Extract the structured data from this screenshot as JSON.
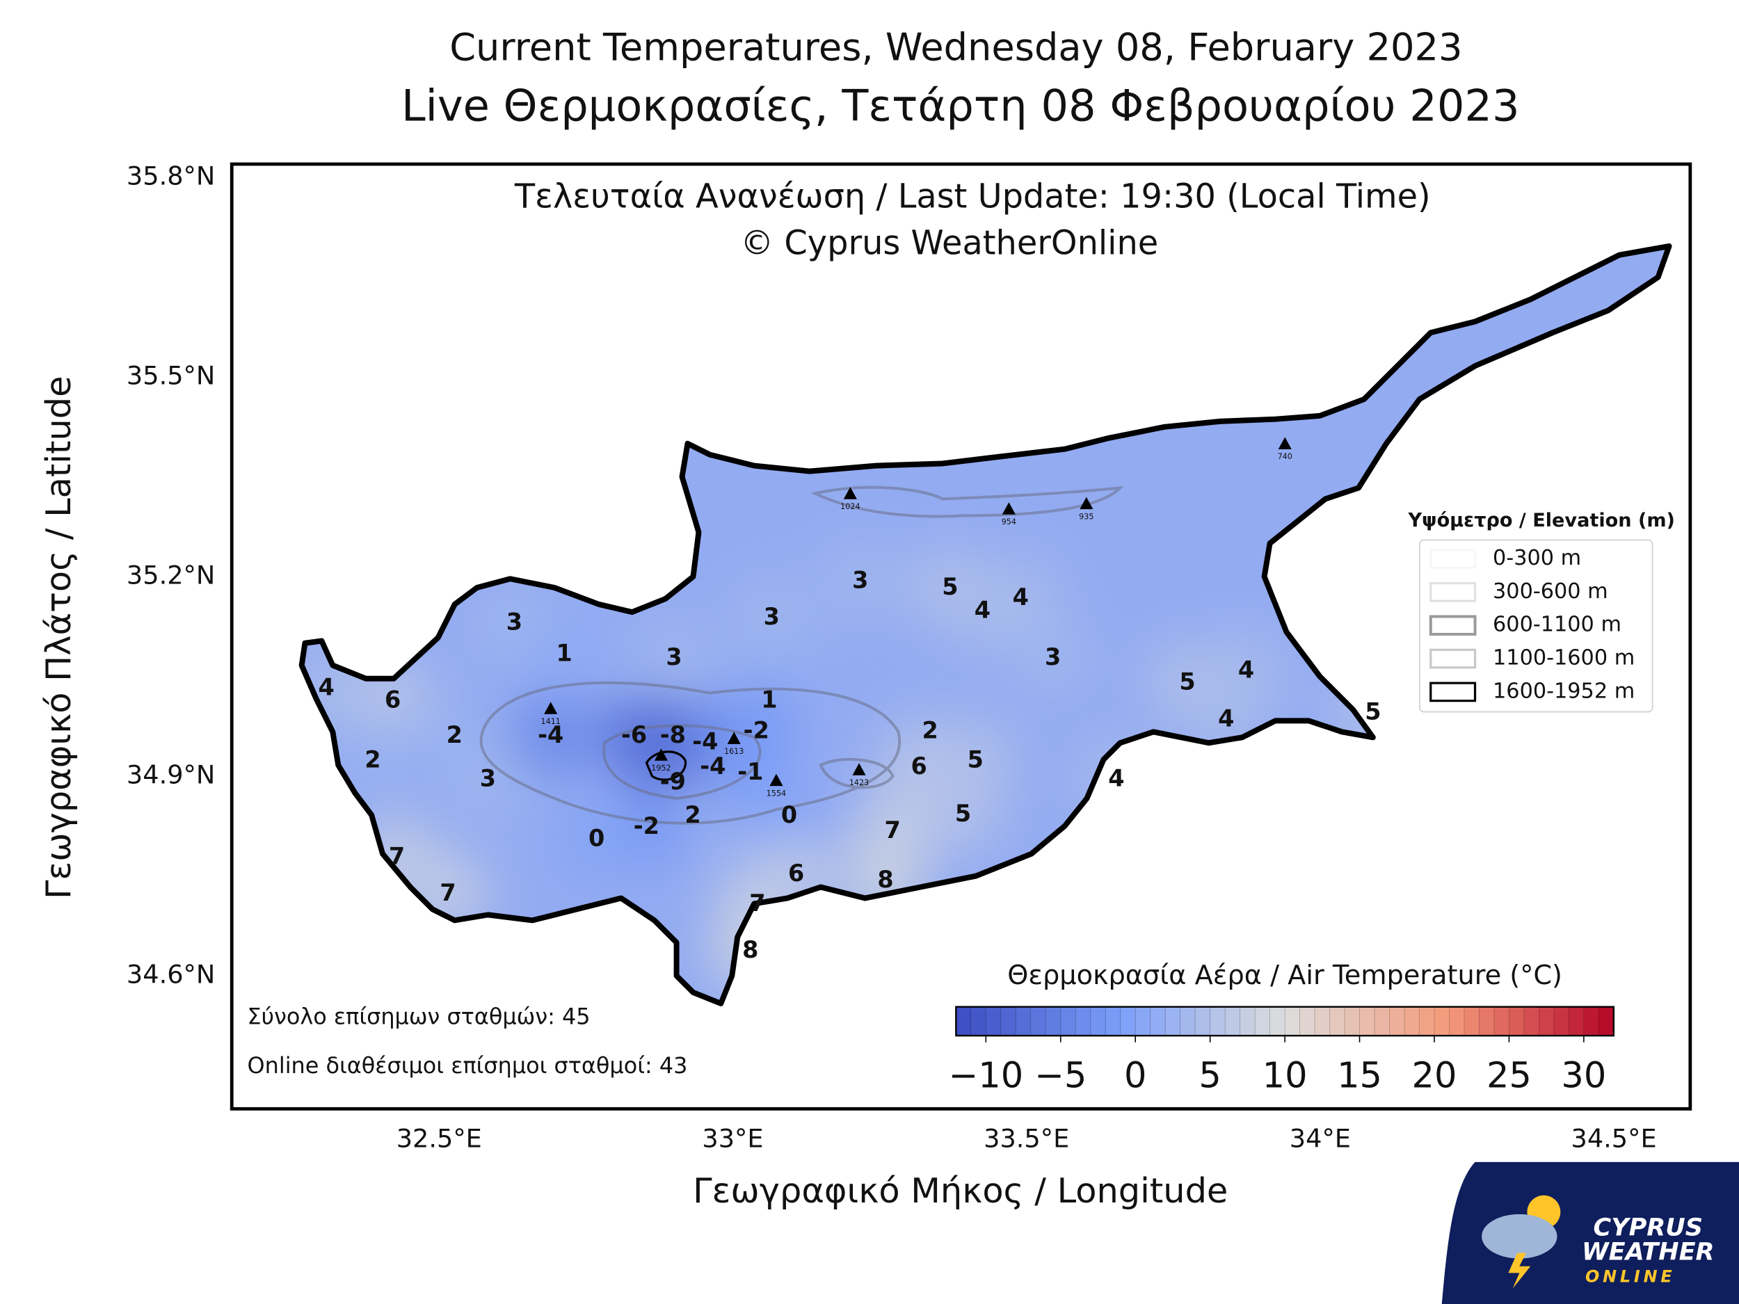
{
  "title": "Current Temperatures, Wednesday 08, February 2023",
  "subtitle": "Live Θερμοκρασίες, Τετάρτη 08 Φεβρουαρίου 2023",
  "map": {
    "type": "map",
    "annotation": [
      "Τελευταία Ανανέωση / Last Update: 19:30 (Local Time)",
      "© Cyprus WeatherOnline"
    ],
    "xlabel": "Γεωγραφικό Μήκος / Longitude",
    "ylabel": "Γεωγραφικό Πλάτος / Latitude",
    "xlim": [
      32.147,
      34.63
    ],
    "ylim": [
      34.4,
      35.82
    ],
    "xticks": [
      {
        "value": 32.5,
        "label": "32.5°E"
      },
      {
        "value": 33,
        "label": "33°E"
      },
      {
        "value": 33.5,
        "label": "33.5°E"
      },
      {
        "value": 34,
        "label": "34°E"
      },
      {
        "value": 34.5,
        "label": "34.5°E"
      }
    ],
    "yticks": [
      {
        "value": 34.6,
        "label": "34.6°N"
      },
      {
        "value": 34.9,
        "label": "34.9°N"
      },
      {
        "value": 35.2,
        "label": "35.2°N"
      },
      {
        "value": 35.5,
        "label": "35.5°N"
      },
      {
        "value": 35.8,
        "label": "35.8°N"
      }
    ],
    "grid": true,
    "stations": [
      {
        "lon": 32.628,
        "lat": 35.13,
        "value": 3
      },
      {
        "lon": 32.713,
        "lat": 35.083,
        "value": 1
      },
      {
        "lon": 32.9,
        "lat": 35.077,
        "value": 3
      },
      {
        "lon": 33.066,
        "lat": 35.138,
        "value": 3
      },
      {
        "lon": 33.217,
        "lat": 35.193,
        "value": 3
      },
      {
        "lon": 33.37,
        "lat": 35.183,
        "value": 5
      },
      {
        "lon": 33.425,
        "lat": 35.148,
        "value": 4
      },
      {
        "lon": 33.49,
        "lat": 35.167,
        "value": 4
      },
      {
        "lon": 33.545,
        "lat": 35.077,
        "value": 3
      },
      {
        "lon": 33.774,
        "lat": 35.04,
        "value": 5
      },
      {
        "lon": 33.874,
        "lat": 35.058,
        "value": 4
      },
      {
        "lon": 33.84,
        "lat": 34.985,
        "value": 4
      },
      {
        "lon": 34.09,
        "lat": 34.995,
        "value": 5
      },
      {
        "lon": 32.308,
        "lat": 35.032,
        "value": 4
      },
      {
        "lon": 32.421,
        "lat": 35.013,
        "value": 6
      },
      {
        "lon": 32.526,
        "lat": 34.96,
        "value": 2
      },
      {
        "lon": 32.387,
        "lat": 34.923,
        "value": 2
      },
      {
        "lon": 32.583,
        "lat": 34.895,
        "value": 3
      },
      {
        "lon": 32.69,
        "lat": 34.96,
        "value": -4
      },
      {
        "lon": 33.062,
        "lat": 35.013,
        "value": 1
      },
      {
        "lon": 32.832,
        "lat": 34.96,
        "value": -6
      },
      {
        "lon": 32.898,
        "lat": 34.96,
        "value": -8
      },
      {
        "lon": 32.953,
        "lat": 34.95,
        "value": -4
      },
      {
        "lon": 33.04,
        "lat": 34.967,
        "value": -2
      },
      {
        "lon": 32.966,
        "lat": 34.913,
        "value": -4
      },
      {
        "lon": 33.03,
        "lat": 34.905,
        "value": -1
      },
      {
        "lon": 32.898,
        "lat": 34.89,
        "value": -9
      },
      {
        "lon": 33.336,
        "lat": 34.967,
        "value": 2
      },
      {
        "lon": 33.317,
        "lat": 34.913,
        "value": 6
      },
      {
        "lon": 33.413,
        "lat": 34.923,
        "value": 5
      },
      {
        "lon": 33.653,
        "lat": 34.895,
        "value": 4
      },
      {
        "lon": 33.392,
        "lat": 34.842,
        "value": 5
      },
      {
        "lon": 33.272,
        "lat": 34.817,
        "value": 7
      },
      {
        "lon": 33.096,
        "lat": 34.84,
        "value": 0
      },
      {
        "lon": 32.932,
        "lat": 34.84,
        "value": 2
      },
      {
        "lon": 32.853,
        "lat": 34.823,
        "value": -2
      },
      {
        "lon": 32.768,
        "lat": 34.805,
        "value": 0
      },
      {
        "lon": 32.428,
        "lat": 34.778,
        "value": 7
      },
      {
        "lon": 32.515,
        "lat": 34.723,
        "value": 7
      },
      {
        "lon": 33.108,
        "lat": 34.752,
        "value": 6
      },
      {
        "lon": 33.26,
        "lat": 34.743,
        "value": 8
      },
      {
        "lon": 33.042,
        "lat": 34.707,
        "value": 7
      },
      {
        "lon": 33.03,
        "lat": 34.637,
        "value": 8
      }
    ],
    "peaks": [
      {
        "lon": 32.69,
        "lat": 35.0,
        "elevation": 1411
      },
      {
        "lon": 32.878,
        "lat": 34.93,
        "elevation": 1952
      },
      {
        "lon": 33.002,
        "lat": 34.955,
        "elevation": 1613
      },
      {
        "lon": 33.074,
        "lat": 34.892,
        "elevation": 1554
      },
      {
        "lon": 33.215,
        "lat": 34.908,
        "elevation": 1423
      },
      {
        "lon": 33.2,
        "lat": 35.323,
        "elevation": 1024
      },
      {
        "lon": 33.47,
        "lat": 35.3,
        "elevation": 954
      },
      {
        "lon": 33.602,
        "lat": 35.308,
        "elevation": 935
      },
      {
        "lon": 33.94,
        "lat": 35.398,
        "elevation": 740
      }
    ]
  },
  "elevation_legend": {
    "title": "Υψόμετρο / Elevation (m)",
    "items": [
      "0-300 m",
      "300-600 m",
      "600-1100 m",
      "1100-1600 m",
      "1600-1952 m"
    ]
  },
  "colorbar": {
    "title": "Θερμοκρασία Αέρα / Air Temperature (°C)",
    "colormap": "coolwarm",
    "lim": [
      -12,
      32
    ],
    "ticks": [
      {
        "value": -10,
        "label": "−10"
      },
      {
        "value": -5,
        "label": "−5"
      },
      0,
      5,
      10,
      15,
      20,
      25,
      30
    ]
  },
  "notes": [
    "Σύνολο επίσημων σταθμών: 45",
    "Online διαθέσιμοι επίσημοι σταθμοί: 43"
  ],
  "logo": [
    "CYPRUS",
    "WEATHER",
    "ONLINE"
  ]
}
